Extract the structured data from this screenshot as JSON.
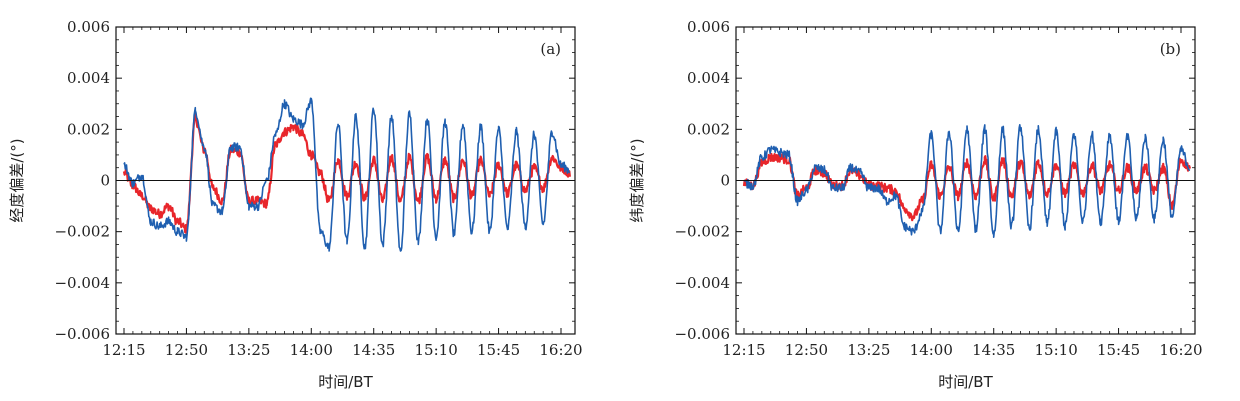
{
  "chart_data": [
    {
      "type": "line",
      "panel_label": "(a)",
      "xlabel": "时间/BT",
      "ylabel": "经度偏差/(°)",
      "x_tick_labels": [
        "12:15",
        "12:50",
        "13:25",
        "14:00",
        "14:35",
        "15:10",
        "15:45",
        "16:20"
      ],
      "y_tick_labels": [
        "0.006",
        "0.004",
        "0.002",
        "0",
        "−0.002",
        "−0.004",
        "−0.006"
      ],
      "ylim": [
        -0.006,
        0.006
      ],
      "grid": false,
      "zero_line": true,
      "colors": {
        "red_series": "#e8262b",
        "blue_series": "#1f5fb0"
      },
      "series": [
        {
          "color": "red",
          "x": [
            "12:15",
            "12:20",
            "12:25",
            "12:30",
            "12:35",
            "12:40",
            "12:45",
            "12:50",
            "12:55",
            "13:00",
            "13:05",
            "13:10",
            "13:15",
            "13:20",
            "13:25",
            "13:30",
            "13:35",
            "13:40",
            "13:45",
            "13:50",
            "13:55",
            "14:00",
            "14:05",
            "14:10",
            "14:15",
            "14:20",
            "14:25",
            "14:30",
            "14:35",
            "14:40",
            "14:45",
            "14:50",
            "14:55",
            "15:00",
            "15:05",
            "15:10",
            "15:15",
            "15:20",
            "15:25",
            "15:30",
            "15:35",
            "15:40",
            "15:45",
            "15:50",
            "15:55",
            "16:00",
            "16:05",
            "16:10",
            "16:15",
            "16:20",
            "16:25"
          ],
          "y": [
            0.0003,
            -0.0002,
            -0.0006,
            -0.0011,
            -0.0013,
            -0.001,
            -0.0016,
            -0.0019,
            0.0024,
            0.0012,
            -0.0003,
            -0.0008,
            0.0012,
            0.0011,
            -0.0008,
            -0.0008,
            -0.0009,
            0.0014,
            0.0019,
            0.0021,
            0.0018,
            0.001,
            0.0003,
            -0.0008,
            0.0008,
            -0.0006,
            0.0007,
            -0.0007,
            0.0008,
            -0.0008,
            0.0009,
            -0.0008,
            0.0009,
            -0.0008,
            0.0009,
            -0.0007,
            0.0008,
            -0.0007,
            0.0008,
            -0.0006,
            0.0008,
            -0.0006,
            0.0006,
            -0.0005,
            0.0006,
            -0.0004,
            0.0005,
            -0.0003,
            0.0009,
            0.0005,
            0.0003
          ]
        },
        {
          "color": "blue",
          "x": [
            "12:15",
            "12:20",
            "12:25",
            "12:30",
            "12:35",
            "12:40",
            "12:45",
            "12:50",
            "12:55",
            "13:00",
            "13:05",
            "13:10",
            "13:15",
            "13:20",
            "13:25",
            "13:30",
            "13:35",
            "13:40",
            "13:45",
            "13:50",
            "13:55",
            "14:00",
            "14:05",
            "14:10",
            "14:15",
            "14:20",
            "14:25",
            "14:30",
            "14:35",
            "14:40",
            "14:45",
            "14:50",
            "14:55",
            "15:00",
            "15:05",
            "15:10",
            "15:15",
            "15:20",
            "15:25",
            "15:30",
            "15:35",
            "15:40",
            "15:45",
            "15:50",
            "15:55",
            "16:00",
            "16:05",
            "16:10",
            "16:15",
            "16:20",
            "16:25"
          ],
          "y": [
            0.0006,
            -0.0001,
            0.0002,
            -0.0016,
            -0.0018,
            -0.0016,
            -0.002,
            -0.0022,
            0.0027,
            0.0013,
            -0.001,
            -0.0012,
            0.0013,
            0.0013,
            -0.001,
            -0.001,
            0.0,
            0.0018,
            0.003,
            0.0024,
            0.0022,
            0.0031,
            -0.002,
            -0.0026,
            0.0022,
            -0.0024,
            0.0025,
            -0.0026,
            0.0028,
            -0.0025,
            0.0025,
            -0.0028,
            0.0026,
            -0.0024,
            0.0024,
            -0.0022,
            0.0023,
            -0.0021,
            0.0022,
            -0.002,
            0.0021,
            -0.002,
            0.002,
            -0.0019,
            0.0019,
            -0.0018,
            0.0018,
            -0.0017,
            0.0019,
            0.0006,
            0.0004
          ]
        }
      ]
    },
    {
      "type": "line",
      "panel_label": "(b)",
      "xlabel": "时间/BT",
      "ylabel": "纬度偏差/(°)",
      "x_tick_labels": [
        "12:15",
        "12:50",
        "13:25",
        "14:00",
        "14:35",
        "15:10",
        "15:45",
        "16:20"
      ],
      "y_tick_labels": [
        "0.006",
        "0.004",
        "0.002",
        "0",
        "−0.002",
        "−0.004",
        "−0.006"
      ],
      "ylim": [
        -0.006,
        0.006
      ],
      "grid": false,
      "zero_line": true,
      "colors": {
        "red_series": "#e8262b",
        "blue_series": "#1f5fb0"
      },
      "series": [
        {
          "color": "red",
          "x": [
            "12:15",
            "12:20",
            "12:25",
            "12:30",
            "12:35",
            "12:40",
            "12:45",
            "12:50",
            "12:55",
            "13:00",
            "13:05",
            "13:10",
            "13:15",
            "13:20",
            "13:25",
            "13:30",
            "13:35",
            "13:40",
            "13:45",
            "13:50",
            "13:55",
            "14:00",
            "14:05",
            "14:10",
            "14:15",
            "14:20",
            "14:25",
            "14:30",
            "14:35",
            "14:40",
            "14:45",
            "14:50",
            "14:55",
            "15:00",
            "15:05",
            "15:10",
            "15:15",
            "15:20",
            "15:25",
            "15:30",
            "15:35",
            "15:40",
            "15:45",
            "15:50",
            "15:55",
            "16:00",
            "16:05",
            "16:10",
            "16:15",
            "16:20",
            "16:25"
          ],
          "y": [
            -0.0001,
            -0.0002,
            0.0007,
            0.0009,
            0.0009,
            0.0008,
            -0.0006,
            -0.0003,
            0.0004,
            0.0003,
            -0.0002,
            -0.0002,
            0.0004,
            0.0002,
            -0.0002,
            -0.0002,
            -0.0003,
            -0.0004,
            -0.0011,
            -0.0014,
            -0.0008,
            0.0006,
            -0.0006,
            0.0005,
            -0.0006,
            0.0007,
            -0.0006,
            0.0008,
            -0.0007,
            0.0008,
            -0.0006,
            0.0007,
            -0.0006,
            0.0007,
            -0.0005,
            0.0006,
            -0.0005,
            0.0006,
            -0.0005,
            0.0006,
            -0.0004,
            0.0006,
            -0.0004,
            0.0005,
            -0.0004,
            0.0005,
            -0.0004,
            0.0005,
            -0.001,
            0.0008,
            0.0005
          ]
        },
        {
          "color": "blue",
          "x": [
            "12:15",
            "12:20",
            "12:25",
            "12:30",
            "12:35",
            "12:40",
            "12:45",
            "12:50",
            "12:55",
            "13:00",
            "13:05",
            "13:10",
            "13:15",
            "13:20",
            "13:25",
            "13:30",
            "13:35",
            "13:40",
            "13:45",
            "13:50",
            "13:55",
            "14:00",
            "14:05",
            "14:10",
            "14:15",
            "14:20",
            "14:25",
            "14:30",
            "14:35",
            "14:40",
            "14:45",
            "14:50",
            "14:55",
            "15:00",
            "15:05",
            "15:10",
            "15:15",
            "15:20",
            "15:25",
            "15:30",
            "15:35",
            "15:40",
            "15:45",
            "15:50",
            "15:55",
            "16:00",
            "16:05",
            "16:10",
            "16:15",
            "16:20",
            "16:25"
          ],
          "y": [
            -0.0001,
            -0.0002,
            0.0009,
            0.0012,
            0.0011,
            0.001,
            -0.0008,
            -0.0004,
            0.0005,
            0.0004,
            -0.0003,
            -0.0003,
            0.0005,
            0.0003,
            -0.0003,
            -0.0003,
            -0.0008,
            -0.0006,
            -0.0018,
            -0.002,
            -0.0012,
            0.0018,
            -0.002,
            0.0019,
            -0.002,
            0.002,
            -0.0019,
            0.002,
            -0.0021,
            0.002,
            -0.0018,
            0.0021,
            -0.0019,
            0.002,
            -0.0017,
            0.0019,
            -0.0018,
            0.0018,
            -0.0016,
            0.0018,
            -0.0016,
            0.0018,
            -0.0016,
            0.0017,
            -0.0015,
            0.0017,
            -0.0015,
            0.0016,
            -0.0014,
            0.0012,
            0.0005
          ]
        }
      ]
    }
  ]
}
